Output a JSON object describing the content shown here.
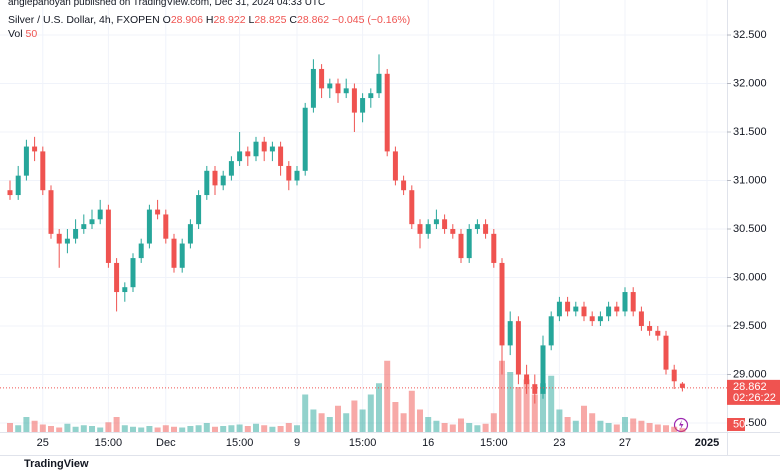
{
  "header": "anglepanoyan published on TradingView.com, Dec 31, 2024 04:33 UTC",
  "chart_data": {
    "type": "candlestick",
    "title": "Silver / U.S. Dollar, 4h, FXOPEN",
    "ohlc_labels": [
      "O",
      "H",
      "L",
      "C"
    ],
    "change_label": "−0.045 (−0.16%)",
    "volume_label": "Vol",
    "countdown": "02:26:22",
    "categories": [
      null,
      null,
      null,
      null,
      "25",
      null,
      null,
      null,
      null,
      null,
      null,
      null,
      "15:00",
      null,
      null,
      null,
      null,
      null,
      null,
      "Dec",
      null,
      null,
      null,
      null,
      null,
      null,
      null,
      null,
      "15:00",
      null,
      null,
      null,
      null,
      null,
      null,
      "9",
      null,
      null,
      null,
      null,
      null,
      null,
      null,
      "15:00",
      null,
      null,
      null,
      null,
      null,
      null,
      null,
      "16",
      null,
      null,
      null,
      null,
      null,
      null,
      null,
      "15:00",
      null,
      null,
      null,
      null,
      null,
      null,
      null,
      "23",
      null,
      null,
      null,
      null,
      null,
      null,
      null,
      "27",
      null,
      null,
      null,
      null,
      null,
      null,
      null,
      null,
      null,
      "2025",
      null,
      null,
      null
    ],
    "open": [
      30.9,
      30.85,
      31.05,
      31.35,
      31.3,
      30.9,
      30.45,
      30.35,
      30.4,
      30.5,
      30.55,
      30.6,
      30.7,
      30.15,
      29.85,
      29.9,
      30.2,
      30.35,
      30.7,
      30.65,
      30.4,
      30.1,
      30.35,
      30.55,
      30.85,
      31.1,
      30.95,
      31.05,
      31.2,
      31.3,
      31.25,
      31.4,
      31.3,
      31.35,
      31.15,
      31.0,
      31.1,
      31.75,
      32.15,
      31.95,
      32.0,
      31.9,
      31.95,
      31.7,
      31.85,
      31.9,
      32.1,
      31.3,
      31.0,
      30.9,
      30.55,
      30.45,
      30.55,
      30.6,
      30.5,
      30.45,
      30.2,
      30.5,
      30.55,
      30.45,
      30.15,
      29.3,
      29.55,
      29.0,
      28.9,
      28.8,
      29.3,
      29.6,
      29.75,
      29.65,
      29.7,
      29.6,
      29.55,
      29.6,
      29.7,
      29.65,
      29.85,
      29.65,
      29.5,
      29.45,
      29.4,
      29.05,
      28.906,
      null,
      null,
      null,
      null,
      null,
      null
    ],
    "high": [
      31.0,
      31.15,
      31.42,
      31.45,
      31.35,
      30.95,
      30.5,
      30.5,
      30.6,
      30.65,
      30.7,
      30.8,
      30.75,
      30.2,
      29.95,
      30.25,
      30.4,
      30.75,
      30.8,
      30.7,
      30.45,
      30.4,
      30.6,
      30.9,
      31.15,
      31.15,
      31.1,
      31.25,
      31.5,
      31.35,
      31.45,
      31.45,
      31.4,
      31.4,
      31.2,
      31.15,
      31.8,
      32.25,
      32.2,
      32.05,
      32.05,
      32.05,
      32.0,
      31.9,
      31.95,
      32.3,
      32.15,
      31.35,
      31.05,
      30.95,
      30.6,
      30.6,
      30.7,
      30.65,
      30.55,
      30.5,
      30.55,
      30.6,
      30.6,
      30.5,
      30.2,
      29.65,
      29.6,
      29.1,
      29.0,
      29.4,
      29.65,
      29.8,
      29.8,
      29.75,
      29.75,
      29.65,
      29.65,
      29.75,
      29.75,
      29.9,
      29.9,
      29.7,
      29.55,
      29.5,
      29.45,
      29.1,
      28.922,
      null,
      null,
      null,
      null,
      null,
      null
    ],
    "low": [
      30.8,
      30.8,
      31.0,
      31.2,
      30.85,
      30.4,
      30.1,
      30.25,
      30.35,
      30.45,
      30.5,
      30.55,
      30.1,
      29.65,
      29.75,
      29.85,
      30.15,
      30.3,
      30.6,
      30.35,
      30.05,
      30.05,
      30.3,
      30.5,
      30.8,
      30.85,
      30.9,
      31.0,
      31.15,
      31.15,
      31.2,
      31.2,
      31.2,
      31.05,
      30.9,
      30.95,
      31.05,
      31.7,
      31.85,
      31.85,
      31.8,
      31.85,
      31.5,
      31.6,
      31.75,
      31.85,
      31.25,
      30.95,
      30.85,
      30.5,
      30.3,
      30.4,
      30.5,
      30.45,
      30.4,
      30.15,
      30.15,
      30.45,
      30.4,
      30.1,
      29.0,
      29.2,
      28.9,
      28.8,
      28.7,
      28.75,
      29.25,
      29.55,
      29.6,
      29.6,
      29.55,
      29.5,
      29.5,
      29.55,
      29.6,
      29.6,
      29.6,
      29.45,
      29.4,
      29.35,
      29.0,
      28.85,
      28.825,
      null,
      null,
      null,
      null,
      null,
      null
    ],
    "close": [
      30.85,
      31.05,
      31.35,
      31.3,
      30.9,
      30.45,
      30.35,
      30.4,
      30.5,
      30.55,
      30.6,
      30.7,
      30.15,
      29.85,
      29.9,
      30.2,
      30.35,
      30.7,
      30.65,
      30.4,
      30.1,
      30.35,
      30.55,
      30.85,
      31.1,
      30.95,
      31.05,
      31.2,
      31.3,
      31.25,
      31.4,
      31.3,
      31.35,
      31.15,
      31.0,
      31.1,
      31.75,
      32.15,
      31.95,
      32.0,
      31.9,
      31.95,
      31.7,
      31.85,
      31.9,
      32.1,
      31.3,
      31.0,
      30.9,
      30.55,
      30.45,
      30.55,
      30.6,
      30.5,
      30.45,
      30.2,
      30.5,
      30.55,
      30.45,
      30.15,
      29.3,
      29.55,
      29.0,
      28.9,
      28.8,
      29.3,
      29.6,
      29.75,
      29.65,
      29.7,
      29.6,
      29.55,
      29.6,
      29.7,
      29.65,
      29.85,
      29.65,
      29.5,
      29.45,
      29.4,
      29.05,
      28.93,
      28.862,
      null,
      null,
      null,
      null,
      null,
      null
    ],
    "volume": [
      120,
      90,
      200,
      150,
      100,
      80,
      60,
      110,
      70,
      90,
      80,
      60,
      130,
      200,
      90,
      70,
      60,
      80,
      60,
      90,
      70,
      60,
      80,
      90,
      120,
      70,
      80,
      90,
      100,
      80,
      110,
      90,
      70,
      80,
      120,
      90,
      500,
      300,
      250,
      200,
      350,
      250,
      420,
      300,
      500,
      650,
      950,
      400,
      250,
      550,
      300,
      200,
      150,
      120,
      100,
      180,
      120,
      90,
      110,
      250,
      950,
      800,
      600,
      700,
      500,
      650,
      750,
      300,
      200,
      150,
      350,
      250,
      150,
      120,
      100,
      200,
      180,
      150,
      120,
      100,
      90,
      70,
      50,
      null,
      null,
      null,
      null,
      null,
      null
    ],
    "ylim": [
      28.407,
      32.861
    ],
    "yticks": [
      {
        "value": 28.5,
        "label": "28.500"
      },
      {
        "value": 29,
        "label": "29.000"
      },
      {
        "value": 29.5,
        "label": "29.500"
      },
      {
        "value": 30,
        "label": "30.000"
      },
      {
        "value": 30.5,
        "label": "30.500"
      },
      {
        "value": 31,
        "label": "31.000"
      },
      {
        "value": 31.5,
        "label": "31.500"
      },
      {
        "value": 32,
        "label": "32.000"
      },
      {
        "value": 32.5,
        "label": "32.500"
      }
    ],
    "vlim": [
      0,
      1000
    ],
    "grid": true,
    "up_color": "#26a69a",
    "down_color": "#ef5350"
  },
  "footer": "TradingView"
}
